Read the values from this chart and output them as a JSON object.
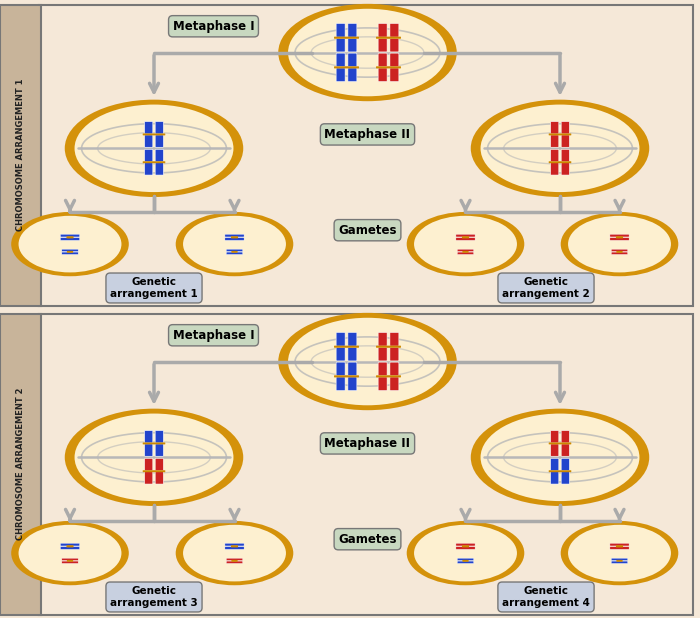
{
  "bg_color": "#f5e8d8",
  "panel_bg": "#f5e8d8",
  "sidebar_color": "#c8b49a",
  "cell_outer_color": "#d4920a",
  "cell_inner_color": "#fdf0d0",
  "spindle_color": "#b8b8b8",
  "arrow_color": "#aaaaaa",
  "label_box_color": "#c8d8c0",
  "label_box_color2": "#c8d0e0",
  "blue_chr": "#2244cc",
  "red_chr": "#cc2222",
  "centromere_color": "#cc8800",
  "title1": "CHROMOSOME ARRANGEMENT 1",
  "title2": "CHROMOSOME ARRANGEMENT 2",
  "metaphase1_label": "Metaphase I",
  "metaphase2_label": "Metaphase II",
  "gametes_label": "Gametes",
  "genetic_labels": [
    "Genetic\narrangement 1",
    "Genetic\narrangement 2",
    "Genetic\narrangement 3",
    "Genetic\narrangement 4"
  ]
}
